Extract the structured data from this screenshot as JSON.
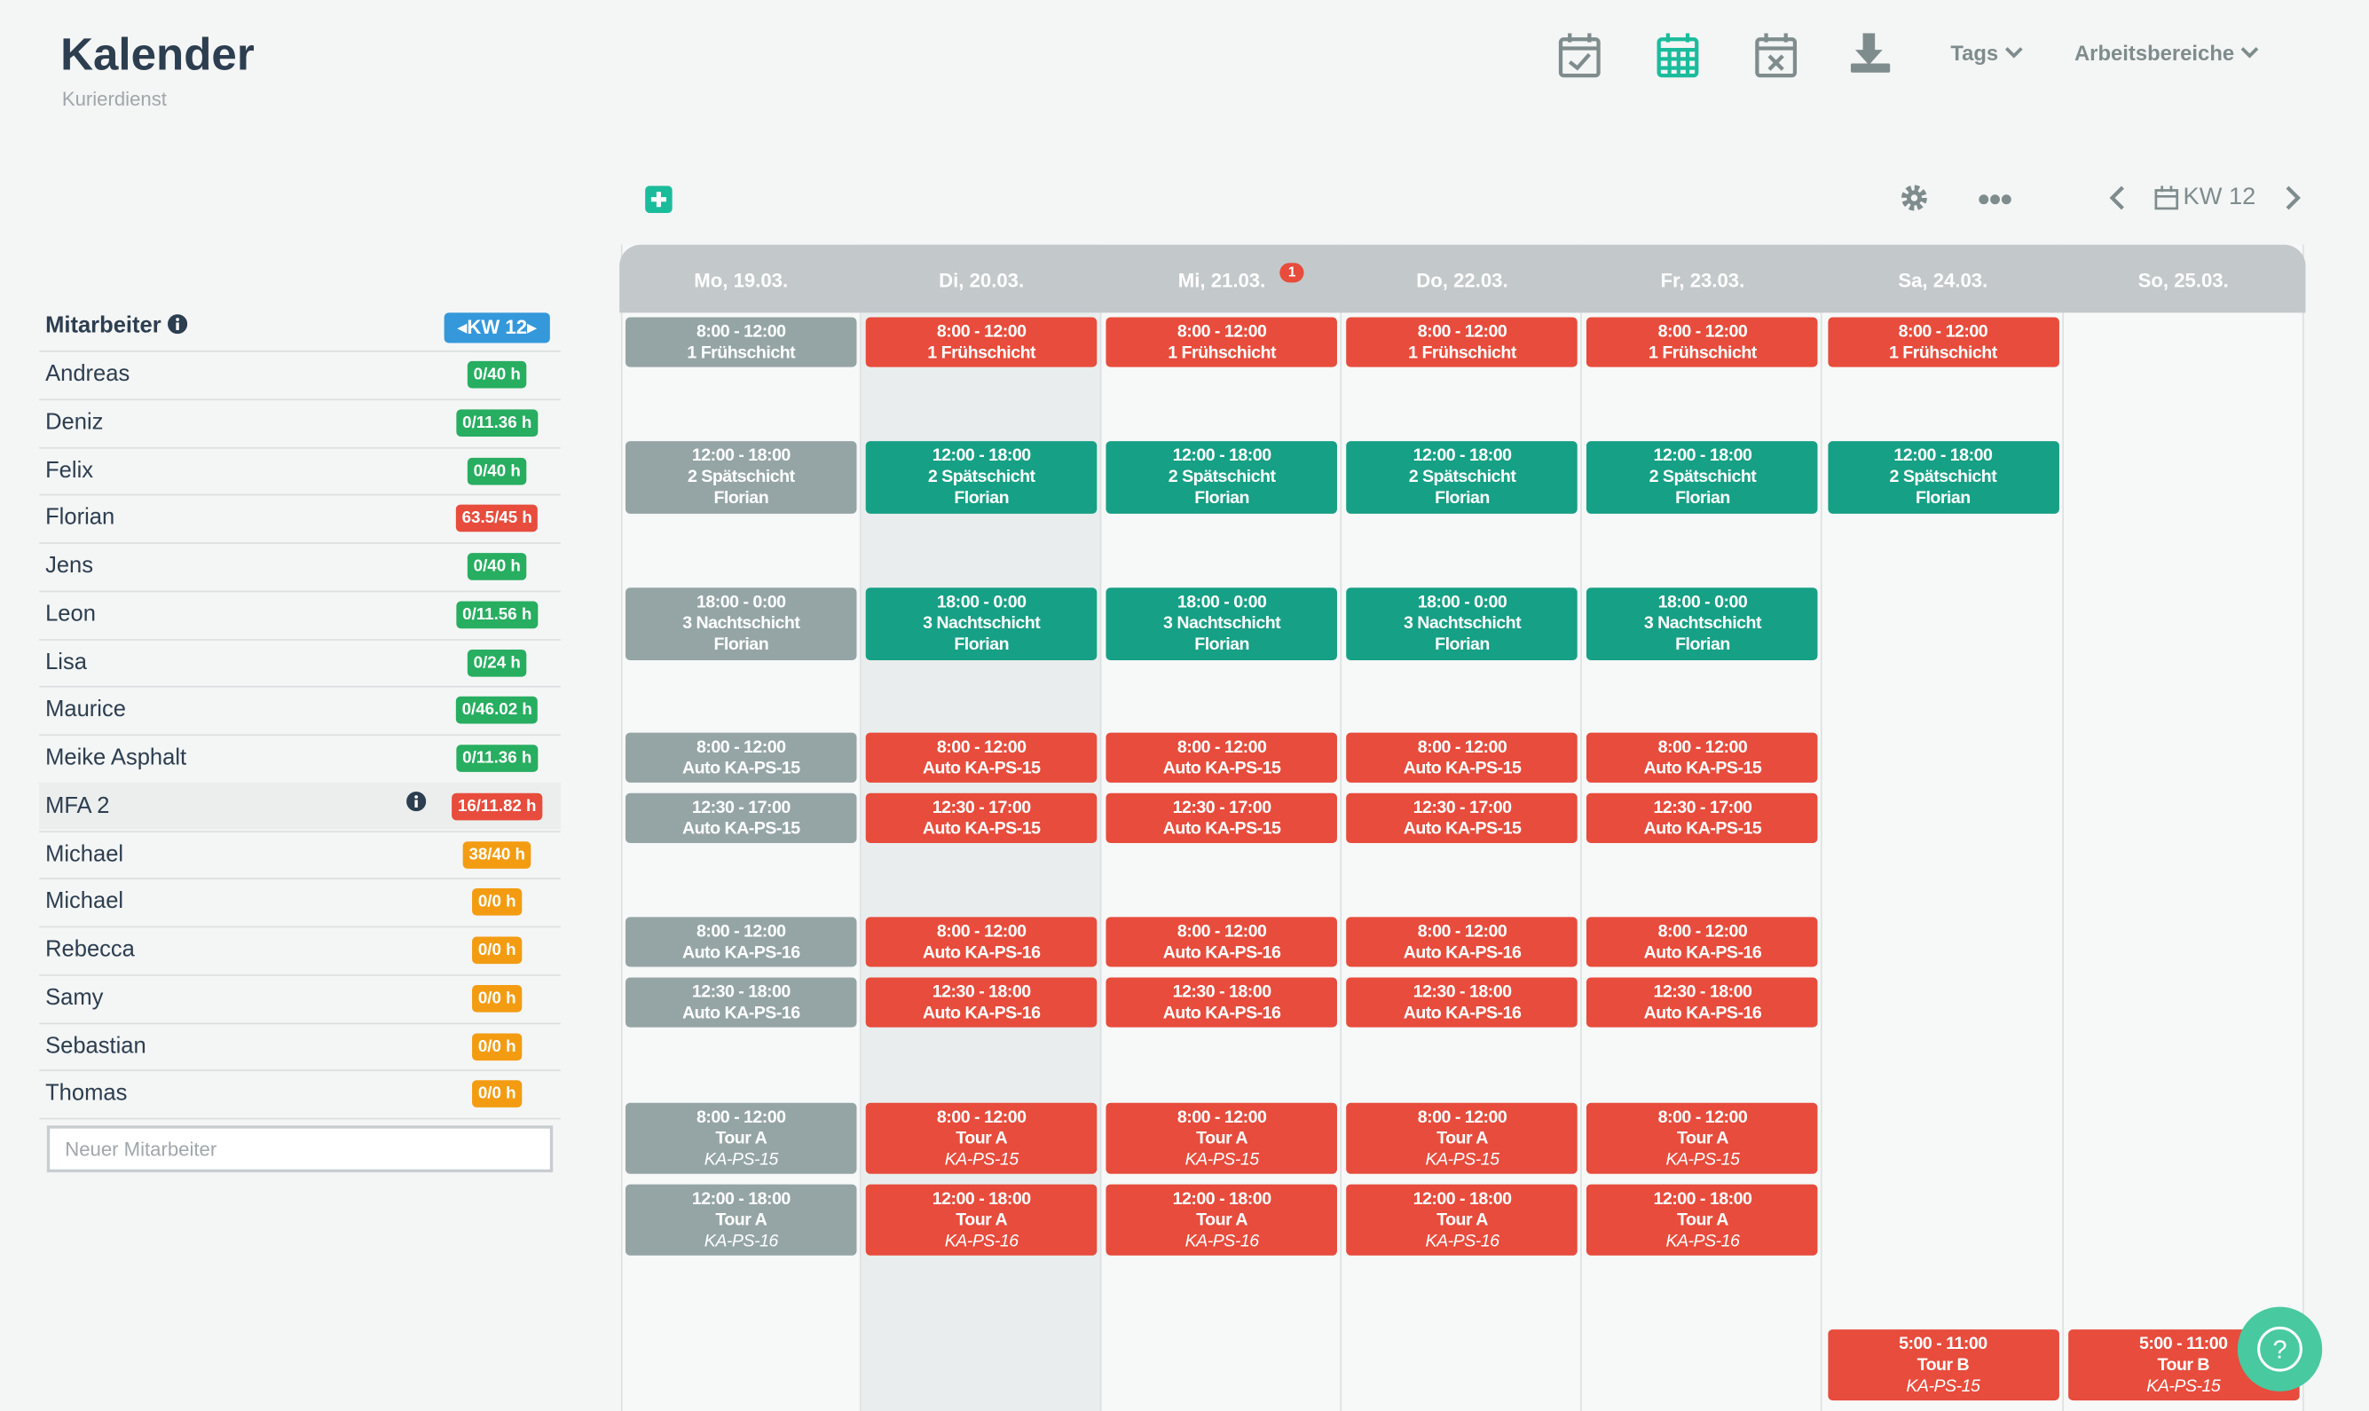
{
  "header": {
    "title": "Kalender",
    "subtitle": "Kurierdienst",
    "menus": [
      "Tags",
      "Arbeitsbereiche"
    ]
  },
  "toolbar": {
    "week": "KW 12"
  },
  "sidebar": {
    "heading": "Mitarbeiter",
    "week_badge": "KW 12",
    "employees": [
      {
        "name": "Andreas",
        "hours": "0/40 h",
        "color": "#27ae60"
      },
      {
        "name": "Deniz",
        "hours": "0/11.36 h",
        "color": "#27ae60"
      },
      {
        "name": "Felix",
        "hours": "0/40 h",
        "color": "#27ae60"
      },
      {
        "name": "Florian",
        "hours": "63.5/45 h",
        "color": "#e74c3c"
      },
      {
        "name": "Jens",
        "hours": "0/40 h",
        "color": "#27ae60"
      },
      {
        "name": "Leon",
        "hours": "0/11.56 h",
        "color": "#27ae60"
      },
      {
        "name": "Lisa",
        "hours": "0/24 h",
        "color": "#27ae60"
      },
      {
        "name": "Maurice",
        "hours": "0/46.02 h",
        "color": "#27ae60"
      },
      {
        "name": "Meike Asphalt",
        "hours": "0/11.36 h",
        "color": "#27ae60"
      },
      {
        "name": "MFA 2",
        "hours": "16/11.82 h",
        "color": "#e74c3c",
        "info": true
      },
      {
        "name": "Michael",
        "hours": "38/40 h",
        "color": "#f39c12"
      },
      {
        "name": "Michael",
        "hours": "0/0 h",
        "color": "#f39c12"
      },
      {
        "name": "Rebecca",
        "hours": "0/0 h",
        "color": "#f39c12"
      },
      {
        "name": "Samy",
        "hours": "0/0 h",
        "color": "#f39c12"
      },
      {
        "name": "Sebastian",
        "hours": "0/0 h",
        "color": "#f39c12"
      },
      {
        "name": "Thomas",
        "hours": "0/0 h",
        "color": "#f39c12"
      }
    ],
    "input_placeholder": "Neuer Mitarbeiter"
  },
  "calendar": {
    "days": [
      {
        "label": "Mo, 19.03."
      },
      {
        "label": "Di, 20.03."
      },
      {
        "label": "Mi, 21.03.",
        "badge": "1"
      },
      {
        "label": "Do, 22.03."
      },
      {
        "label": "Fr, 23.03."
      },
      {
        "label": "Sa, 24.03."
      },
      {
        "label": "So, 25.03."
      }
    ],
    "shifts": [
      {
        "lines": [
          "8:00 - 12:00",
          "1 Frühschicht"
        ],
        "colors": [
          "#95a5a6",
          "#e74c3c",
          "#e74c3c",
          "#e74c3c",
          "#e74c3c",
          "#e74c3c",
          null
        ]
      },
      {
        "lines": [
          "12:00 - 18:00",
          "2 Spätschicht",
          "Florian"
        ],
        "colors": [
          "#95a5a6",
          "#16a085",
          "#16a085",
          "#16a085",
          "#16a085",
          "#16a085",
          null
        ]
      },
      {
        "lines": [
          "18:00 - 0:00",
          "3 Nachtschicht",
          "Florian"
        ],
        "colors": [
          "#95a5a6",
          "#16a085",
          "#16a085",
          "#16a085",
          "#16a085",
          null,
          null
        ]
      },
      {
        "lines": [
          "8:00 - 12:00",
          "Auto KA-PS-15"
        ],
        "colors": [
          "#95a5a6",
          "#e74c3c",
          "#e74c3c",
          "#e74c3c",
          "#e74c3c",
          null,
          null
        ]
      },
      {
        "lines": [
          "12:30 - 17:00",
          "Auto KA-PS-15"
        ],
        "colors": [
          "#95a5a6",
          "#e74c3c",
          "#e74c3c",
          "#e74c3c",
          "#e74c3c",
          null,
          null
        ]
      },
      {
        "lines": [
          "8:00 - 12:00",
          "Auto KA-PS-16"
        ],
        "colors": [
          "#95a5a6",
          "#e74c3c",
          "#e74c3c",
          "#e74c3c",
          "#e74c3c",
          null,
          null
        ]
      },
      {
        "lines": [
          "12:30 - 18:00",
          "Auto KA-PS-16"
        ],
        "colors": [
          "#95a5a6",
          "#e74c3c",
          "#e74c3c",
          "#e74c3c",
          "#e74c3c",
          null,
          null
        ]
      },
      {
        "lines": [
          "8:00 - 12:00",
          "Tour A",
          "KA-PS-15"
        ],
        "italic_last": true,
        "colors": [
          "#95a5a6",
          "#e74c3c",
          "#e74c3c",
          "#e74c3c",
          "#e74c3c",
          null,
          null
        ]
      },
      {
        "lines": [
          "12:00 - 18:00",
          "Tour A",
          "KA-PS-16"
        ],
        "italic_last": true,
        "colors": [
          "#95a5a6",
          "#e74c3c",
          "#e74c3c",
          "#e74c3c",
          "#e74c3c",
          null,
          null
        ]
      },
      {
        "lines": [
          "5:00 - 11:00",
          "Tour B",
          "KA-PS-15"
        ],
        "italic_last": true,
        "colors": [
          null,
          null,
          null,
          null,
          null,
          "#e74c3c",
          "#e74c3c"
        ]
      }
    ]
  }
}
